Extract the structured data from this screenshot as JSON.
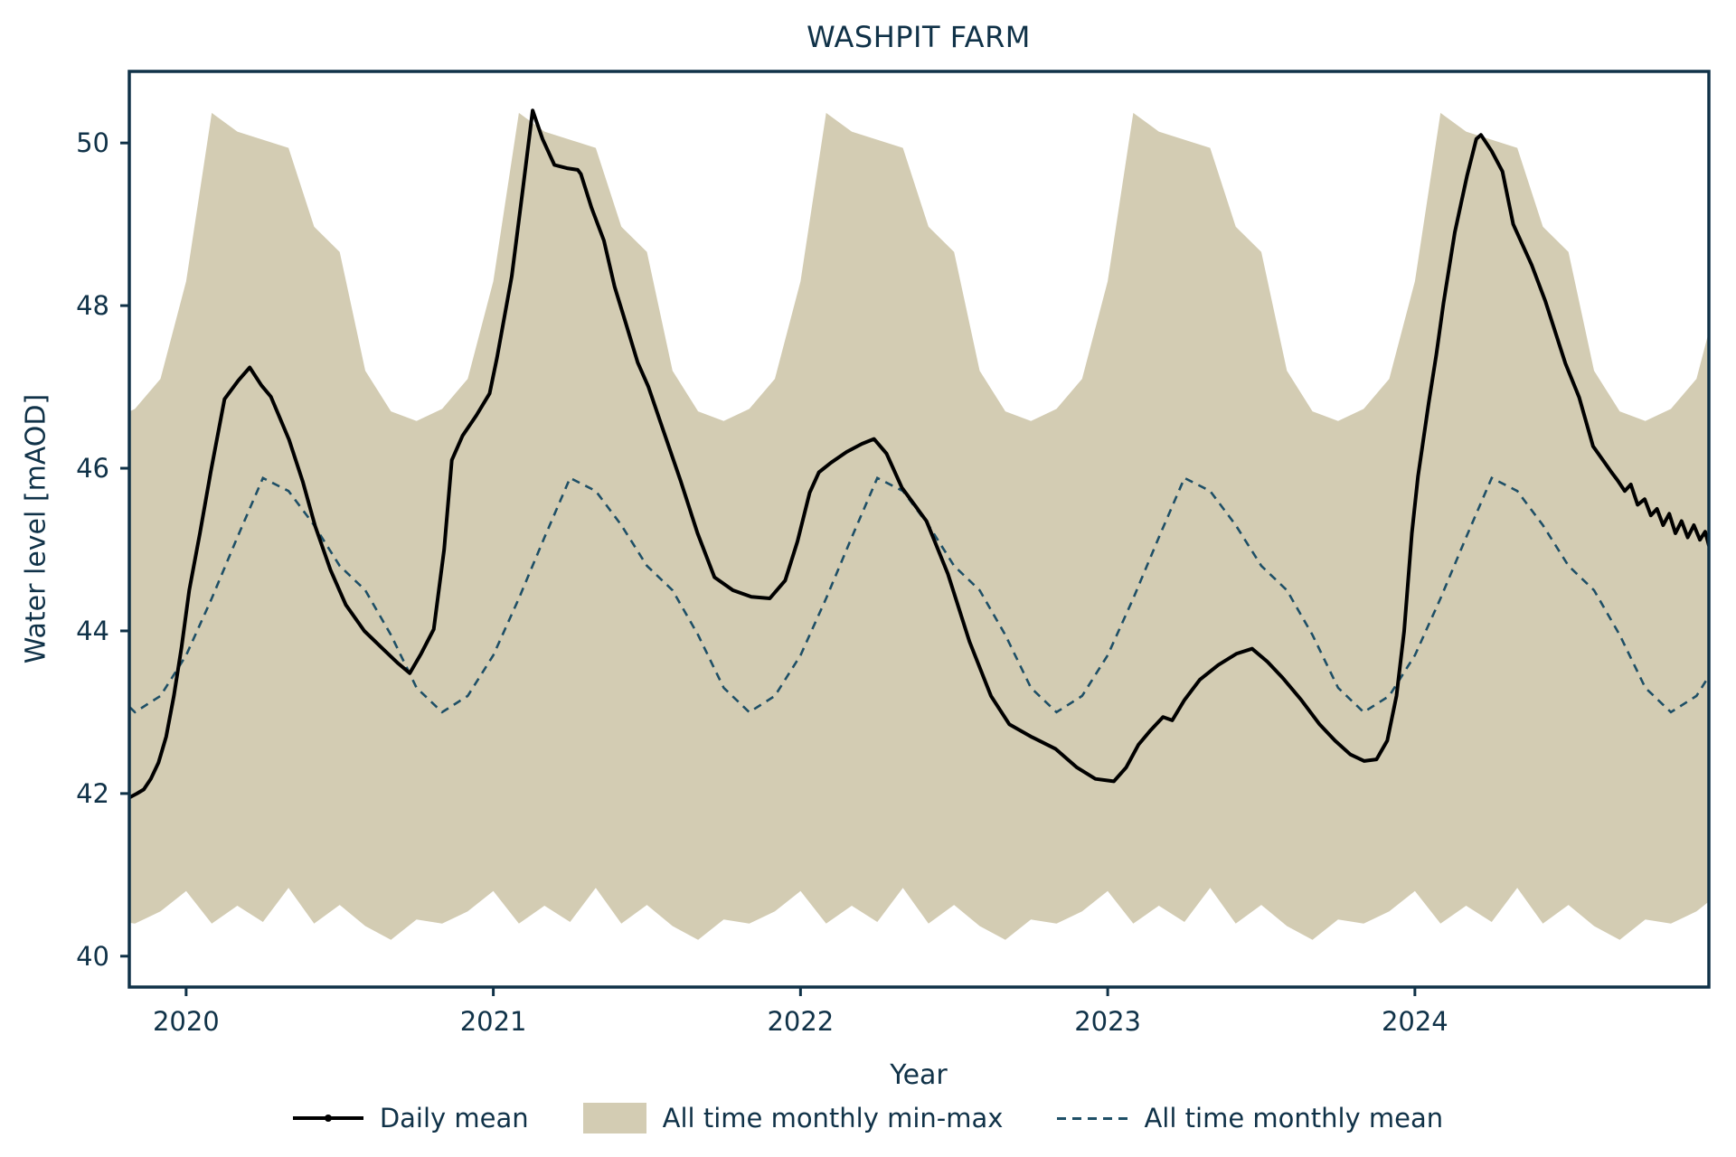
{
  "title": "WASHPIT FARM",
  "x_axis": {
    "label": "Year",
    "tick_labels": [
      "2020",
      "2021",
      "2022",
      "2023",
      "2024"
    ],
    "tick_values": [
      2020,
      2021,
      2022,
      2023,
      2024
    ],
    "range": [
      2019.815,
      2024.957
    ]
  },
  "y_axis": {
    "label": "Water level [mAOD]",
    "tick_labels": [
      "40",
      "42",
      "44",
      "46",
      "48",
      "50"
    ],
    "tick_values": [
      40,
      42,
      44,
      46,
      48,
      50
    ],
    "range": [
      39.62,
      50.88
    ]
  },
  "legend": {
    "items": [
      {
        "label": "Daily mean",
        "marker": "line"
      },
      {
        "label": "All time monthly min-max",
        "marker": "patch"
      },
      {
        "label": "All time monthly mean",
        "marker": "dashed"
      }
    ]
  },
  "colors": {
    "background": "#ffffff",
    "text": "#103248",
    "spine": "#103248",
    "band": "#d3ccb3",
    "daily_mean": "#000000",
    "monthly_mean": "#1e4f66"
  },
  "chart_data": {
    "type": "line",
    "title": "WASHPIT FARM",
    "xlabel": "Year",
    "ylabel": "Water level [mAOD]",
    "xlim": [
      2019.815,
      2024.957
    ],
    "ylim": [
      39.62,
      50.88
    ],
    "x_ticks": [
      2020,
      2021,
      2022,
      2023,
      2024
    ],
    "y_ticks": [
      40,
      42,
      44,
      46,
      48,
      50
    ],
    "grid": false,
    "legend_position": "bottom center",
    "series": [
      {
        "name": "Daily mean",
        "type": "line",
        "color": "#000000",
        "points": [
          [
            2019.815,
            41.95
          ],
          [
            2019.84,
            42.0
          ],
          [
            2019.862,
            42.05
          ],
          [
            2019.885,
            42.18
          ],
          [
            2019.91,
            42.38
          ],
          [
            2019.935,
            42.7
          ],
          [
            2019.96,
            43.2
          ],
          [
            2019.985,
            43.8
          ],
          [
            2020.01,
            44.5
          ],
          [
            2020.045,
            45.2
          ],
          [
            2020.08,
            45.95
          ],
          [
            2020.125,
            46.85
          ],
          [
            2020.17,
            47.08
          ],
          [
            2020.207,
            47.24
          ],
          [
            2020.245,
            47.02
          ],
          [
            2020.276,
            46.88
          ],
          [
            2020.335,
            46.35
          ],
          [
            2020.38,
            45.83
          ],
          [
            2020.42,
            45.29
          ],
          [
            2020.47,
            44.75
          ],
          [
            2020.52,
            44.32
          ],
          [
            2020.58,
            44.0
          ],
          [
            2020.64,
            43.78
          ],
          [
            2020.69,
            43.6
          ],
          [
            2020.728,
            43.48
          ],
          [
            2020.765,
            43.72
          ],
          [
            2020.806,
            44.02
          ],
          [
            2020.84,
            45.0
          ],
          [
            2020.865,
            46.1
          ],
          [
            2020.9,
            46.4
          ],
          [
            2020.945,
            46.65
          ],
          [
            2020.988,
            46.92
          ],
          [
            2021.012,
            47.36
          ],
          [
            2021.06,
            48.36
          ],
          [
            2021.095,
            49.4
          ],
          [
            2021.128,
            50.4
          ],
          [
            2021.16,
            50.05
          ],
          [
            2021.199,
            49.73
          ],
          [
            2021.24,
            49.69
          ],
          [
            2021.275,
            49.67
          ],
          [
            2021.285,
            49.62
          ],
          [
            2021.32,
            49.2
          ],
          [
            2021.36,
            48.8
          ],
          [
            2021.395,
            48.23
          ],
          [
            2021.43,
            47.8
          ],
          [
            2021.47,
            47.3
          ],
          [
            2021.505,
            47.0
          ],
          [
            2021.55,
            46.5
          ],
          [
            2021.61,
            45.84
          ],
          [
            2021.665,
            45.2
          ],
          [
            2021.72,
            44.66
          ],
          [
            2021.78,
            44.5
          ],
          [
            2021.84,
            44.42
          ],
          [
            2021.9,
            44.4
          ],
          [
            2021.95,
            44.62
          ],
          [
            2021.99,
            45.1
          ],
          [
            2022.03,
            45.7
          ],
          [
            2022.06,
            45.95
          ],
          [
            2022.1,
            46.07
          ],
          [
            2022.15,
            46.2
          ],
          [
            2022.2,
            46.3
          ],
          [
            2022.239,
            46.36
          ],
          [
            2022.28,
            46.18
          ],
          [
            2022.33,
            45.76
          ],
          [
            2022.41,
            45.35
          ],
          [
            2022.48,
            44.7
          ],
          [
            2022.55,
            43.87
          ],
          [
            2022.62,
            43.2
          ],
          [
            2022.68,
            42.85
          ],
          [
            2022.75,
            42.7
          ],
          [
            2022.83,
            42.55
          ],
          [
            2022.9,
            42.32
          ],
          [
            2022.96,
            42.18
          ],
          [
            2023.02,
            42.15
          ],
          [
            2023.06,
            42.32
          ],
          [
            2023.1,
            42.6
          ],
          [
            2023.14,
            42.78
          ],
          [
            2023.18,
            42.94
          ],
          [
            2023.21,
            42.9
          ],
          [
            2023.25,
            43.15
          ],
          [
            2023.3,
            43.4
          ],
          [
            2023.36,
            43.58
          ],
          [
            2023.42,
            43.72
          ],
          [
            2023.47,
            43.78
          ],
          [
            2023.52,
            43.62
          ],
          [
            2023.57,
            43.42
          ],
          [
            2023.63,
            43.15
          ],
          [
            2023.69,
            42.85
          ],
          [
            2023.74,
            42.65
          ],
          [
            2023.79,
            42.48
          ],
          [
            2023.835,
            42.4
          ],
          [
            2023.875,
            42.42
          ],
          [
            2023.91,
            42.65
          ],
          [
            2023.94,
            43.2
          ],
          [
            2023.965,
            44.0
          ],
          [
            2023.99,
            45.2
          ],
          [
            2024.01,
            45.9
          ],
          [
            2024.045,
            46.8
          ],
          [
            2024.07,
            47.4
          ],
          [
            2024.093,
            48.03
          ],
          [
            2024.13,
            48.9
          ],
          [
            2024.17,
            49.6
          ],
          [
            2024.2,
            50.05
          ],
          [
            2024.215,
            50.1
          ],
          [
            2024.25,
            49.9
          ],
          [
            2024.285,
            49.65
          ],
          [
            2024.32,
            49.0
          ],
          [
            2024.38,
            48.5
          ],
          [
            2024.425,
            48.05
          ],
          [
            2024.49,
            47.29
          ],
          [
            2024.535,
            46.87
          ],
          [
            2024.58,
            46.27
          ],
          [
            2024.612,
            46.1
          ],
          [
            2024.64,
            45.95
          ],
          [
            2024.66,
            45.85
          ],
          [
            2024.683,
            45.72
          ],
          [
            2024.703,
            45.8
          ],
          [
            2024.725,
            45.55
          ],
          [
            2024.748,
            45.62
          ],
          [
            2024.768,
            45.42
          ],
          [
            2024.788,
            45.5
          ],
          [
            2024.808,
            45.3
          ],
          [
            2024.828,
            45.44
          ],
          [
            2024.848,
            45.2
          ],
          [
            2024.868,
            45.35
          ],
          [
            2024.888,
            45.15
          ],
          [
            2024.908,
            45.3
          ],
          [
            2024.928,
            45.12
          ],
          [
            2024.945,
            45.22
          ],
          [
            2024.957,
            45.05
          ]
        ]
      },
      {
        "name": "All time monthly min-max",
        "type": "band",
        "color": "#d3ccb3",
        "repeat": "annual",
        "month_start_values": true,
        "max": [
          48.3,
          50.37,
          50.14,
          50.04,
          49.94,
          48.97,
          48.66,
          47.2,
          46.7,
          46.58,
          46.73,
          47.1
        ],
        "min": [
          40.8,
          40.4,
          40.62,
          40.42,
          40.84,
          40.4,
          40.63,
          40.37,
          40.2,
          40.45,
          40.4,
          40.55
        ]
      },
      {
        "name": "All time monthly mean",
        "type": "dashed-line",
        "color": "#1e4f66",
        "repeat": "annual",
        "month_start_values": true,
        "values": [
          43.7,
          44.4,
          45.15,
          45.88,
          45.72,
          45.3,
          44.8,
          44.5,
          43.95,
          43.3,
          43.0,
          43.2
        ]
      }
    ]
  }
}
